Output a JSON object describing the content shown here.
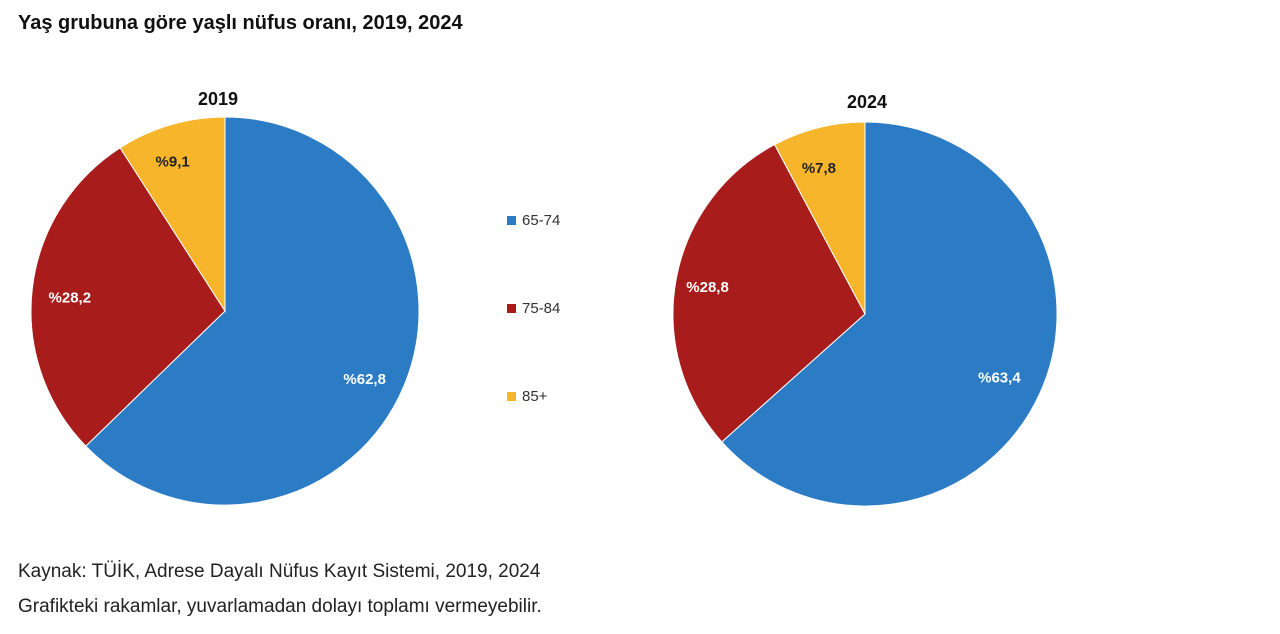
{
  "title": "Yaş grubuna göre yaşlı nüfus oranı, 2019, 2024",
  "colors": {
    "65-74": "#2b7cc4",
    "75-84": "#a81c1c",
    "85+": "#f7b52c"
  },
  "legend": [
    "65-74",
    "75-84",
    "85+"
  ],
  "chart_data": [
    {
      "type": "pie",
      "title": "2019",
      "categories": [
        "65-74",
        "75-84",
        "85+"
      ],
      "values": [
        62.8,
        28.2,
        9.1
      ],
      "labels": [
        "%62,8",
        "%28,2",
        "%9,1"
      ]
    },
    {
      "type": "pie",
      "title": "2024",
      "categories": [
        "65-74",
        "75-84",
        "85+"
      ],
      "values": [
        63.4,
        28.8,
        7.8
      ],
      "labels": [
        "%63,4",
        "%28,8",
        "%7,8"
      ]
    }
  ],
  "footnotes": {
    "source": "Kaynak: TÜİK, Adrese Dayalı Nüfus Kayıt Sistemi, 2019, 2024",
    "rounding": "Grafikteki rakamlar, yuvarlamadan dolayı toplamı vermeyebilir."
  }
}
